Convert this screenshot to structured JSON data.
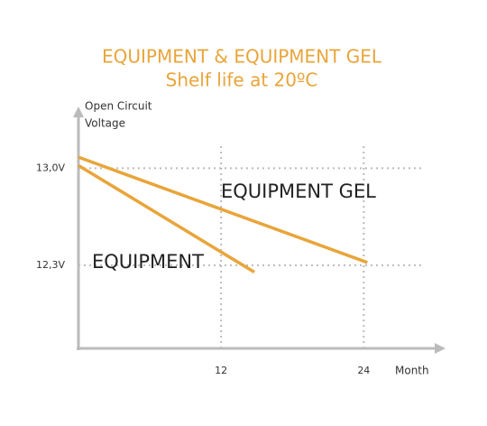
{
  "chart_data": {
    "type": "line",
    "title": "EQUIPMENT & EQUIPMENT GEL",
    "subtitle": "Shelf life at 20ºC",
    "y_label": [
      "Open Circuit",
      "Voltage"
    ],
    "x_label": "Month",
    "series": [
      {
        "name": "EQUIPMENT GEL",
        "color": "#e8a53a",
        "x": [
          0,
          24.3
        ],
        "values": [
          13.08,
          12.32
        ]
      },
      {
        "name": "EQUIPMENT",
        "color": "#e8a53a",
        "x": [
          0,
          14.8
        ],
        "values": [
          13.02,
          12.25
        ]
      }
    ],
    "xlim": [
      0,
      30.5
    ],
    "ylim": [
      11.7,
      13.4
    ],
    "xticks": [
      12,
      24
    ],
    "yticks": [
      {
        "value": 13.0,
        "label": "13,0V"
      },
      {
        "value": 12.3,
        "label": "12,3V"
      }
    ],
    "grid": true
  }
}
